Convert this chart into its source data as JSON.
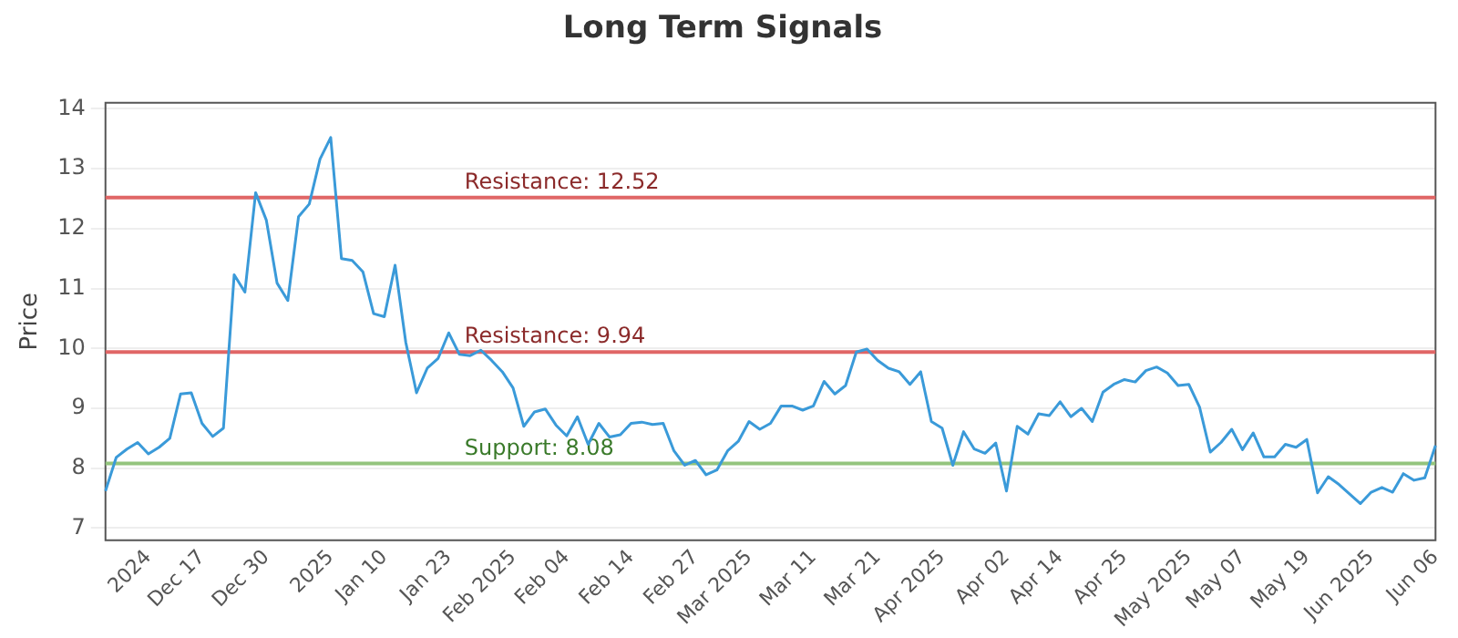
{
  "chart_data": {
    "type": "line",
    "title": "Long Term Signals",
    "ylabel": "Price",
    "categories": [
      null,
      null,
      null,
      null,
      "2024",
      null,
      null,
      null,
      null,
      "Dec 17",
      null,
      null,
      null,
      null,
      null,
      "Dec 30",
      null,
      null,
      null,
      null,
      null,
      "2025",
      null,
      null,
      null,
      null,
      "Jan 10",
      null,
      null,
      null,
      null,
      null,
      "Jan 23",
      null,
      null,
      null,
      null,
      null,
      "Feb 2025",
      null,
      null,
      null,
      null,
      "Feb 04",
      null,
      null,
      null,
      null,
      null,
      "Feb 14",
      null,
      null,
      null,
      null,
      null,
      "Feb 27",
      null,
      null,
      null,
      null,
      "Mar 2025",
      null,
      null,
      null,
      null,
      null,
      "Mar 11",
      null,
      null,
      null,
      null,
      null,
      "Mar 21",
      null,
      null,
      null,
      null,
      null,
      "Apr 2025",
      null,
      null,
      null,
      null,
      null,
      "Apr 02",
      null,
      null,
      null,
      null,
      "Apr 14",
      null,
      null,
      null,
      null,
      null,
      "Apr 25",
      null,
      null,
      null,
      null,
      null,
      "May 2025",
      null,
      null,
      null,
      null,
      "May 07",
      null,
      null,
      null,
      null,
      null,
      "May 19",
      null,
      null,
      null,
      null,
      null,
      "Jun 2025",
      null,
      null,
      null,
      null,
      null,
      "Jun 06"
    ],
    "series": [
      {
        "color": "#3a9ad9",
        "values": [
          7.62,
          8.18,
          8.32,
          8.43,
          8.24,
          8.35,
          8.5,
          9.24,
          9.26,
          8.75,
          8.53,
          8.67,
          11.23,
          10.94,
          12.6,
          12.14,
          11.09,
          10.8,
          12.2,
          12.41,
          13.16,
          13.52,
          11.5,
          11.47,
          11.28,
          10.58,
          10.53,
          11.39,
          10.1,
          9.26,
          9.67,
          9.83,
          10.26,
          9.9,
          9.88,
          9.97,
          9.8,
          9.61,
          9.34,
          8.7,
          8.94,
          8.99,
          8.72,
          8.54,
          8.86,
          8.4,
          8.75,
          8.52,
          8.56,
          8.75,
          8.77,
          8.73,
          8.75,
          8.29,
          8.05,
          8.13,
          7.89,
          7.97,
          8.29,
          8.45,
          8.78,
          8.65,
          8.75,
          9.04,
          9.04,
          8.97,
          9.04,
          9.45,
          9.24,
          9.38,
          9.94,
          9.99,
          9.8,
          9.67,
          9.61,
          9.4,
          9.61,
          8.78,
          8.67,
          8.05,
          8.61,
          8.32,
          8.25,
          8.42,
          7.62,
          8.7,
          8.57,
          8.91,
          8.88,
          9.11,
          8.86,
          9.0,
          8.78,
          9.27,
          9.4,
          9.48,
          9.44,
          9.63,
          9.69,
          9.59,
          9.38,
          9.4,
          9.02,
          8.27,
          8.43,
          8.65,
          8.31,
          8.59,
          8.19,
          8.19,
          8.4,
          8.35,
          8.48,
          7.59,
          7.86,
          7.73,
          7.57,
          7.41,
          7.6,
          7.68,
          7.6,
          7.91,
          7.8,
          7.84,
          8.38
        ]
      }
    ],
    "ylim": [
      6.8,
      14.1
    ],
    "yticks": [
      7,
      8,
      9,
      10,
      11,
      12,
      13,
      14
    ],
    "grid": "y",
    "legend": false,
    "marker": "none",
    "line_style": "solid",
    "ref_lines": [
      {
        "axis": "y",
        "value": 12.52,
        "label": "Resistance: 12.52",
        "color": "#e06666"
      },
      {
        "axis": "y",
        "value": 9.94,
        "label": "Resistance: 9.94",
        "color": "#e06666"
      },
      {
        "axis": "y",
        "value": 8.08,
        "label": "Support: 8.08",
        "color": "#93c47d"
      }
    ]
  }
}
